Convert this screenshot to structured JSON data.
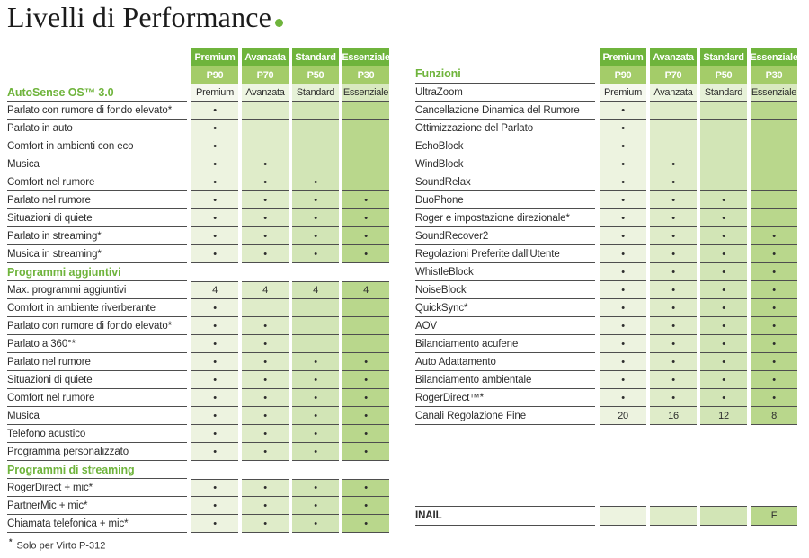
{
  "title": {
    "text": "Livelli di Performance"
  },
  "colors": {
    "accent_green": "#6FB43C",
    "header_green": "#6FB43C",
    "header_band_green": "#A4CC69",
    "border_color": "#4E4E4E",
    "text_color": "#2D2D2D",
    "column_tints": [
      "#EDF3E0",
      "#DFECC9",
      "#D2E5B6",
      "#B9D78C"
    ]
  },
  "levels": [
    {
      "name": "Premium",
      "code": "P90"
    },
    {
      "name": "Avanzata",
      "code": "P70"
    },
    {
      "name": "Standard",
      "code": "P50"
    },
    {
      "name": "Essenziale",
      "code": "P30"
    }
  ],
  "left_table": {
    "sections": [
      {
        "title": "AutoSense OS™ 3.0",
        "title_values": [
          "Premium",
          "Avanzata",
          "Standard",
          "Essenziale"
        ],
        "rows": [
          {
            "label": "Parlato con rumore di fondo elevato*",
            "values": [
              "•",
              "",
              "",
              ""
            ]
          },
          {
            "label": "Parlato in auto",
            "values": [
              "•",
              "",
              "",
              ""
            ]
          },
          {
            "label": "Comfort in ambienti con eco",
            "values": [
              "•",
              "",
              "",
              ""
            ]
          },
          {
            "label": "Musica",
            "values": [
              "•",
              "•",
              "",
              ""
            ]
          },
          {
            "label": "Comfort nel rumore",
            "values": [
              "•",
              "•",
              "•",
              ""
            ]
          },
          {
            "label": "Parlato nel rumore",
            "values": [
              "•",
              "•",
              "•",
              "•"
            ]
          },
          {
            "label": "Situazioni di quiete",
            "values": [
              "•",
              "•",
              "•",
              "•"
            ]
          },
          {
            "label": "Parlato in streaming*",
            "values": [
              "•",
              "•",
              "•",
              "•"
            ]
          },
          {
            "label": "Musica in streaming*",
            "values": [
              "•",
              "•",
              "•",
              "•"
            ]
          }
        ]
      },
      {
        "title": "Programmi aggiuntivi",
        "rows": [
          {
            "label": "Max. programmi aggiuntivi",
            "values": [
              "4",
              "4",
              "4",
              "4"
            ]
          },
          {
            "label": "Comfort in ambiente riverberante",
            "values": [
              "•",
              "",
              "",
              ""
            ]
          },
          {
            "label": "Parlato con rumore di fondo elevato*",
            "values": [
              "•",
              "•",
              "",
              ""
            ]
          },
          {
            "label": "Parlato a 360°*",
            "values": [
              "•",
              "•",
              "",
              ""
            ]
          },
          {
            "label": "Parlato nel rumore",
            "values": [
              "•",
              "•",
              "•",
              "•"
            ]
          },
          {
            "label": "Situazioni di quiete",
            "values": [
              "•",
              "•",
              "•",
              "•"
            ]
          },
          {
            "label": "Comfort nel rumore",
            "values": [
              "•",
              "•",
              "•",
              "•"
            ]
          },
          {
            "label": "Musica",
            "values": [
              "•",
              "•",
              "•",
              "•"
            ]
          },
          {
            "label": "Telefono acustico",
            "values": [
              "•",
              "•",
              "•",
              "•"
            ]
          },
          {
            "label": "Programma personalizzato",
            "values": [
              "•",
              "•",
              "•",
              "•"
            ]
          }
        ]
      },
      {
        "title": "Programmi di streaming",
        "rows": [
          {
            "label": "RogerDirect + mic*",
            "values": [
              "•",
              "•",
              "•",
              "•"
            ]
          },
          {
            "label": "PartnerMic + mic*",
            "values": [
              "•",
              "•",
              "•",
              "•"
            ]
          },
          {
            "label": "Chiamata telefonica + mic*",
            "values": [
              "•",
              "•",
              "•",
              "•"
            ]
          }
        ]
      }
    ]
  },
  "right_table": {
    "section_title": "Funzioni",
    "rows": [
      {
        "label": "UltraZoom",
        "values": [
          "Premium",
          "Avanzata",
          "Standard",
          "Essenziale"
        ],
        "light": true
      },
      {
        "label": "Cancellazione Dinamica del Rumore",
        "values": [
          "•",
          "",
          "",
          ""
        ]
      },
      {
        "label": "Ottimizzazione del Parlato",
        "values": [
          "•",
          "",
          "",
          ""
        ]
      },
      {
        "label": "EchoBlock",
        "values": [
          "•",
          "",
          "",
          ""
        ]
      },
      {
        "label": "WindBlock",
        "values": [
          "•",
          "•",
          "",
          ""
        ]
      },
      {
        "label": "SoundRelax",
        "values": [
          "•",
          "•",
          "",
          ""
        ]
      },
      {
        "label": "DuoPhone",
        "values": [
          "•",
          "•",
          "•",
          ""
        ]
      },
      {
        "label": "Roger e impostazione direzionale*",
        "values": [
          "•",
          "•",
          "•",
          ""
        ]
      },
      {
        "label": "SoundRecover2",
        "values": [
          "•",
          "•",
          "•",
          "•"
        ]
      },
      {
        "label": "Regolazioni Preferite dall'Utente",
        "values": [
          "•",
          "•",
          "•",
          "•"
        ]
      },
      {
        "label": "WhistleBlock",
        "values": [
          "•",
          "•",
          "•",
          "•"
        ]
      },
      {
        "label": "NoiseBlock",
        "values": [
          "•",
          "•",
          "•",
          "•"
        ]
      },
      {
        "label": "QuickSync*",
        "values": [
          "•",
          "•",
          "•",
          "•"
        ]
      },
      {
        "label": "AOV",
        "values": [
          "•",
          "•",
          "•",
          "•"
        ]
      },
      {
        "label": "Bilanciamento acufene",
        "values": [
          "•",
          "•",
          "•",
          "•"
        ]
      },
      {
        "label": "Auto Adattamento",
        "values": [
          "•",
          "•",
          "•",
          "•"
        ]
      },
      {
        "label": "Bilanciamento ambientale",
        "values": [
          "•",
          "•",
          "•",
          "•"
        ]
      },
      {
        "label": "RogerDirect™*",
        "values": [
          "•",
          "•",
          "•",
          "•"
        ]
      },
      {
        "label": "Canali Regolazione Fine",
        "values": [
          "20",
          "16",
          "12",
          "8"
        ]
      }
    ],
    "inail_row": {
      "label": "INAIL",
      "values": [
        "",
        "",
        "",
        "F"
      ]
    }
  },
  "footnote": {
    "marker": "*",
    "text": "Solo per Virto P-312"
  }
}
